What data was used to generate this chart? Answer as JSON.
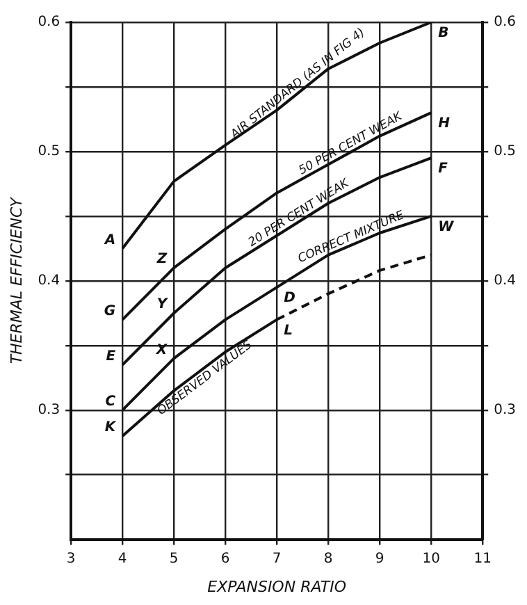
{
  "chart_data": {
    "type": "line",
    "xlabel": "EXPANSION RATIO",
    "ylabel": "THERMAL EFFICIENCY",
    "x": [
      4,
      5,
      6,
      7,
      8,
      9,
      10
    ],
    "series": [
      {
        "name": "AIR STANDARD (AS IN FIG 4)",
        "color": "#111111",
        "values": [
          0.425,
          0.477,
          0.505,
          0.532,
          0.564,
          0.584,
          0.6
        ]
      },
      {
        "name": "50 PER CENT WEAK",
        "color": "#111111",
        "values": [
          0.37,
          0.41,
          0.44,
          0.468,
          0.49,
          0.512,
          0.53
        ]
      },
      {
        "name": "20 PER CENT WEAK",
        "color": "#111111",
        "values": [
          0.335,
          0.375,
          0.41,
          0.435,
          0.46,
          0.48,
          0.495
        ]
      },
      {
        "name": "CORRECT MIXTURE",
        "color": "#111111",
        "values": [
          0.3,
          0.34,
          0.37,
          0.395,
          0.42,
          0.437,
          0.45
        ]
      },
      {
        "name": "OBSERVED VALUES",
        "color": "#111111",
        "x": [
          4,
          5,
          6,
          7
        ],
        "values": [
          0.28,
          0.315,
          0.345,
          0.37
        ]
      },
      {
        "color": "#111111",
        "x": [
          7,
          8,
          9,
          10
        ],
        "values": [
          0.37,
          0.39,
          0.408,
          0.42
        ],
        "line_style": "dashed"
      }
    ],
    "annotations": [
      {
        "text": "A",
        "x": 4,
        "y": 0.425
      },
      {
        "text": "G",
        "x": 4,
        "y": 0.37
      },
      {
        "text": "E",
        "x": 4,
        "y": 0.335
      },
      {
        "text": "C",
        "x": 4,
        "y": 0.3
      },
      {
        "text": "K",
        "x": 4,
        "y": 0.28
      },
      {
        "text": "Z",
        "x": 5,
        "y": 0.41
      },
      {
        "text": "Y",
        "x": 5,
        "y": 0.375
      },
      {
        "text": "X",
        "x": 5,
        "y": 0.34
      },
      {
        "text": "D",
        "x": 7,
        "y": 0.395
      },
      {
        "text": "L",
        "x": 7,
        "y": 0.37
      },
      {
        "text": "B",
        "x": 10,
        "y": 0.6
      },
      {
        "text": "H",
        "x": 10,
        "y": 0.53
      },
      {
        "text": "F",
        "x": 10,
        "y": 0.495
      },
      {
        "text": "W",
        "x": 10,
        "y": 0.45
      }
    ],
    "xlim": [
      3,
      11
    ],
    "xticks": [
      3,
      4,
      5,
      6,
      7,
      8,
      9,
      10,
      11
    ],
    "ylim": [
      0.2,
      0.6
    ],
    "yticks": [
      {
        "value": 0.25,
        "label": null
      },
      0.3,
      {
        "value": 0.35,
        "label": null
      },
      0.4,
      {
        "value": 0.45,
        "label": null
      },
      0.5,
      {
        "value": 0.55,
        "label": null
      },
      0.6
    ],
    "y2lim": [
      0.2,
      0.6
    ],
    "y2ticks": [
      {
        "value": 0.25,
        "label": null
      },
      0.3,
      {
        "value": 0.35,
        "label": null
      },
      0.4,
      {
        "value": 0.45,
        "label": null
      },
      0.5,
      {
        "value": 0.55,
        "label": null
      },
      0.6
    ],
    "grid": true,
    "legend": false,
    "marker": "none",
    "line_style": "solid"
  }
}
